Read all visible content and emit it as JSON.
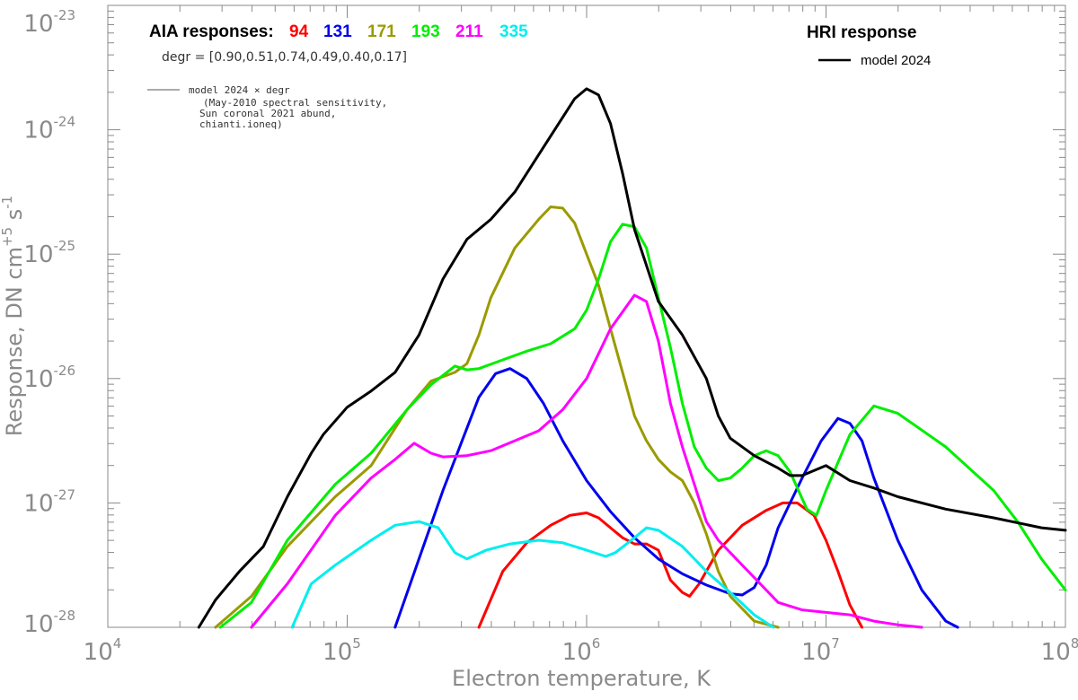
{
  "chart_data": {
    "type": "line",
    "xscale": "log",
    "yscale": "log",
    "xlim": [
      10000,
      100000000
    ],
    "ylim": [
      1e-28,
      1e-23
    ],
    "xlabel": "Electron temperature, K",
    "ylabel_prefix": "Response,  DN cm",
    "ylabel_exp1": "+5",
    "ylabel_mid": " s",
    "ylabel_exp2": "-1",
    "x_ticks": [
      {
        "base": "10",
        "exp": "4",
        "value": 10000
      },
      {
        "base": "10",
        "exp": "5",
        "value": 100000
      },
      {
        "base": "10",
        "exp": "6",
        "value": 1000000
      },
      {
        "base": "10",
        "exp": "7",
        "value": 10000000
      },
      {
        "base": "10",
        "exp": "8",
        "value": 100000000
      }
    ],
    "y_ticks": [
      {
        "base": "10",
        "exp": "-28",
        "value": 1e-28
      },
      {
        "base": "10",
        "exp": "-27",
        "value": 1e-27
      },
      {
        "base": "10",
        "exp": "-26",
        "value": 1e-26
      },
      {
        "base": "10",
        "exp": "-25",
        "value": 1e-25
      },
      {
        "base": "10",
        "exp": "-24",
        "value": 1e-24
      },
      {
        "base": "10",
        "exp": "-23",
        "value": 1e-23
      }
    ],
    "aia_title": "AIA responses:",
    "degr_text": "degr = [0.90,0.51,0.74,0.49,0.40,0.17]",
    "gray_legend_label": "model 2024 × degr",
    "notes": [
      "(May-2010 spectral sensitivity,",
      "Sun coronal 2021 abund,",
      "chianti.ioneq)"
    ],
    "hri_title": "HRI response",
    "hri_legend_label": "model 2024",
    "series": [
      {
        "name": "94",
        "color": "#ff0000",
        "points": [
          [
            5.55,
            -28.0
          ],
          [
            5.65,
            -27.55
          ],
          [
            5.75,
            -27.32
          ],
          [
            5.85,
            -27.18
          ],
          [
            5.93,
            -27.1
          ],
          [
            6.0,
            -27.08
          ],
          [
            6.05,
            -27.12
          ],
          [
            6.1,
            -27.2
          ],
          [
            6.15,
            -27.28
          ],
          [
            6.2,
            -27.33
          ],
          [
            6.25,
            -27.33
          ],
          [
            6.3,
            -27.38
          ],
          [
            6.35,
            -27.62
          ],
          [
            6.4,
            -27.72
          ],
          [
            6.43,
            -27.75
          ],
          [
            6.47,
            -27.65
          ],
          [
            6.55,
            -27.38
          ],
          [
            6.65,
            -27.18
          ],
          [
            6.75,
            -27.06
          ],
          [
            6.82,
            -27.0
          ],
          [
            6.88,
            -27.0
          ],
          [
            6.95,
            -27.1
          ],
          [
            7.0,
            -27.3
          ],
          [
            7.05,
            -27.55
          ],
          [
            7.1,
            -27.82
          ],
          [
            7.15,
            -28.0
          ]
        ]
      },
      {
        "name": "131",
        "color": "#0000ee",
        "points": [
          [
            5.2,
            -28.0
          ],
          [
            5.3,
            -27.45
          ],
          [
            5.4,
            -26.9
          ],
          [
            5.48,
            -26.5
          ],
          [
            5.55,
            -26.15
          ],
          [
            5.62,
            -25.96
          ],
          [
            5.68,
            -25.92
          ],
          [
            5.75,
            -26.0
          ],
          [
            5.82,
            -26.2
          ],
          [
            5.9,
            -26.5
          ],
          [
            6.0,
            -26.82
          ],
          [
            6.1,
            -27.07
          ],
          [
            6.2,
            -27.28
          ],
          [
            6.3,
            -27.45
          ],
          [
            6.4,
            -27.57
          ],
          [
            6.5,
            -27.66
          ],
          [
            6.6,
            -27.73
          ],
          [
            6.65,
            -27.74
          ],
          [
            6.7,
            -27.68
          ],
          [
            6.75,
            -27.5
          ],
          [
            6.8,
            -27.2
          ],
          [
            6.9,
            -26.8
          ],
          [
            6.98,
            -26.5
          ],
          [
            7.05,
            -26.32
          ],
          [
            7.1,
            -26.36
          ],
          [
            7.15,
            -26.5
          ],
          [
            7.2,
            -26.8
          ],
          [
            7.3,
            -27.3
          ],
          [
            7.4,
            -27.7
          ],
          [
            7.5,
            -27.95
          ],
          [
            7.55,
            -28.0
          ]
        ]
      },
      {
        "name": "171",
        "color": "#9a9a00",
        "points": [
          [
            4.45,
            -28.0
          ],
          [
            4.6,
            -27.75
          ],
          [
            4.75,
            -27.35
          ],
          [
            4.95,
            -26.95
          ],
          [
            5.1,
            -26.7
          ],
          [
            5.25,
            -26.25
          ],
          [
            5.35,
            -26.02
          ],
          [
            5.45,
            -25.95
          ],
          [
            5.5,
            -25.88
          ],
          [
            5.55,
            -25.65
          ],
          [
            5.6,
            -25.35
          ],
          [
            5.7,
            -24.95
          ],
          [
            5.8,
            -24.72
          ],
          [
            5.85,
            -24.62
          ],
          [
            5.9,
            -24.63
          ],
          [
            5.95,
            -24.75
          ],
          [
            6.0,
            -25.0
          ],
          [
            6.05,
            -25.25
          ],
          [
            6.1,
            -25.6
          ],
          [
            6.15,
            -25.95
          ],
          [
            6.2,
            -26.3
          ],
          [
            6.25,
            -26.5
          ],
          [
            6.3,
            -26.65
          ],
          [
            6.35,
            -26.75
          ],
          [
            6.4,
            -26.82
          ],
          [
            6.45,
            -27.0
          ],
          [
            6.5,
            -27.25
          ],
          [
            6.55,
            -27.55
          ],
          [
            6.6,
            -27.75
          ],
          [
            6.65,
            -27.85
          ],
          [
            6.7,
            -27.95
          ],
          [
            6.8,
            -28.0
          ]
        ]
      },
      {
        "name": "193",
        "color": "#00ee00",
        "points": [
          [
            4.47,
            -28.0
          ],
          [
            4.6,
            -27.8
          ],
          [
            4.75,
            -27.3
          ],
          [
            4.95,
            -26.85
          ],
          [
            5.1,
            -26.6
          ],
          [
            5.25,
            -26.25
          ],
          [
            5.35,
            -26.05
          ],
          [
            5.45,
            -25.9
          ],
          [
            5.5,
            -25.93
          ],
          [
            5.55,
            -25.92
          ],
          [
            5.65,
            -25.85
          ],
          [
            5.75,
            -25.78
          ],
          [
            5.85,
            -25.72
          ],
          [
            5.95,
            -25.6
          ],
          [
            6.0,
            -25.45
          ],
          [
            6.05,
            -25.2
          ],
          [
            6.1,
            -24.9
          ],
          [
            6.15,
            -24.76
          ],
          [
            6.2,
            -24.78
          ],
          [
            6.25,
            -24.95
          ],
          [
            6.3,
            -25.35
          ],
          [
            6.35,
            -25.75
          ],
          [
            6.4,
            -26.2
          ],
          [
            6.45,
            -26.55
          ],
          [
            6.5,
            -26.72
          ],
          [
            6.55,
            -26.82
          ],
          [
            6.6,
            -26.8
          ],
          [
            6.65,
            -26.72
          ],
          [
            6.7,
            -26.62
          ],
          [
            6.75,
            -26.58
          ],
          [
            6.8,
            -26.62
          ],
          [
            6.85,
            -26.75
          ],
          [
            6.92,
            -27.05
          ],
          [
            6.96,
            -27.1
          ],
          [
            7.0,
            -26.9
          ],
          [
            7.1,
            -26.45
          ],
          [
            7.2,
            -26.22
          ],
          [
            7.3,
            -26.28
          ],
          [
            7.5,
            -26.55
          ],
          [
            7.7,
            -26.9
          ],
          [
            7.8,
            -27.15
          ],
          [
            7.9,
            -27.45
          ],
          [
            8.0,
            -27.7
          ]
        ]
      },
      {
        "name": "211",
        "color": "#ff00ff",
        "points": [
          [
            4.6,
            -28.0
          ],
          [
            4.75,
            -27.65
          ],
          [
            4.95,
            -27.1
          ],
          [
            5.1,
            -26.8
          ],
          [
            5.2,
            -26.65
          ],
          [
            5.28,
            -26.52
          ],
          [
            5.35,
            -26.6
          ],
          [
            5.4,
            -26.63
          ],
          [
            5.5,
            -26.62
          ],
          [
            5.6,
            -26.58
          ],
          [
            5.7,
            -26.5
          ],
          [
            5.8,
            -26.42
          ],
          [
            5.9,
            -26.25
          ],
          [
            6.0,
            -26.0
          ],
          [
            6.1,
            -25.6
          ],
          [
            6.2,
            -25.33
          ],
          [
            6.25,
            -25.38
          ],
          [
            6.3,
            -25.7
          ],
          [
            6.35,
            -26.2
          ],
          [
            6.4,
            -26.55
          ],
          [
            6.45,
            -26.85
          ],
          [
            6.5,
            -27.15
          ],
          [
            6.55,
            -27.3
          ],
          [
            6.6,
            -27.4
          ],
          [
            6.65,
            -27.5
          ],
          [
            6.7,
            -27.6
          ],
          [
            6.8,
            -27.8
          ],
          [
            6.9,
            -27.86
          ],
          [
            7.0,
            -27.88
          ],
          [
            7.1,
            -27.9
          ],
          [
            7.2,
            -27.95
          ],
          [
            7.3,
            -27.98
          ],
          [
            7.4,
            -28.0
          ]
        ]
      },
      {
        "name": "335",
        "color": "#00eeee",
        "points": [
          [
            4.77,
            -28.0
          ],
          [
            4.85,
            -27.65
          ],
          [
            4.95,
            -27.5
          ],
          [
            5.1,
            -27.3
          ],
          [
            5.2,
            -27.18
          ],
          [
            5.3,
            -27.15
          ],
          [
            5.38,
            -27.2
          ],
          [
            5.45,
            -27.4
          ],
          [
            5.5,
            -27.45
          ],
          [
            5.58,
            -27.38
          ],
          [
            5.68,
            -27.33
          ],
          [
            5.8,
            -27.3
          ],
          [
            5.9,
            -27.32
          ],
          [
            6.0,
            -27.38
          ],
          [
            6.08,
            -27.43
          ],
          [
            6.12,
            -27.4
          ],
          [
            6.2,
            -27.28
          ],
          [
            6.25,
            -27.2
          ],
          [
            6.3,
            -27.22
          ],
          [
            6.4,
            -27.35
          ],
          [
            6.5,
            -27.55
          ],
          [
            6.6,
            -27.72
          ],
          [
            6.7,
            -27.9
          ],
          [
            6.78,
            -28.0
          ]
        ]
      },
      {
        "name": "model 2024",
        "color": "#000000",
        "points": [
          [
            4.38,
            -28.0
          ],
          [
            4.45,
            -27.78
          ],
          [
            4.55,
            -27.55
          ],
          [
            4.65,
            -27.35
          ],
          [
            4.75,
            -26.95
          ],
          [
            4.85,
            -26.6
          ],
          [
            4.9,
            -26.45
          ],
          [
            5.0,
            -26.23
          ],
          [
            5.1,
            -26.1
          ],
          [
            5.2,
            -25.95
          ],
          [
            5.3,
            -25.65
          ],
          [
            5.4,
            -25.2
          ],
          [
            5.5,
            -24.88
          ],
          [
            5.6,
            -24.72
          ],
          [
            5.7,
            -24.5
          ],
          [
            5.8,
            -24.2
          ],
          [
            5.9,
            -23.9
          ],
          [
            5.95,
            -23.75
          ],
          [
            6.0,
            -23.67
          ],
          [
            6.05,
            -23.72
          ],
          [
            6.1,
            -23.95
          ],
          [
            6.15,
            -24.35
          ],
          [
            6.2,
            -24.8
          ],
          [
            6.3,
            -25.38
          ],
          [
            6.4,
            -25.65
          ],
          [
            6.5,
            -26.0
          ],
          [
            6.55,
            -26.3
          ],
          [
            6.6,
            -26.48
          ],
          [
            6.7,
            -26.62
          ],
          [
            6.8,
            -26.72
          ],
          [
            6.85,
            -26.78
          ],
          [
            6.9,
            -26.78
          ],
          [
            7.0,
            -26.7
          ],
          [
            7.1,
            -26.82
          ],
          [
            7.2,
            -26.88
          ],
          [
            7.3,
            -26.95
          ],
          [
            7.5,
            -27.05
          ],
          [
            7.7,
            -27.12
          ],
          [
            7.9,
            -27.2
          ],
          [
            8.0,
            -27.22
          ]
        ]
      }
    ]
  }
}
